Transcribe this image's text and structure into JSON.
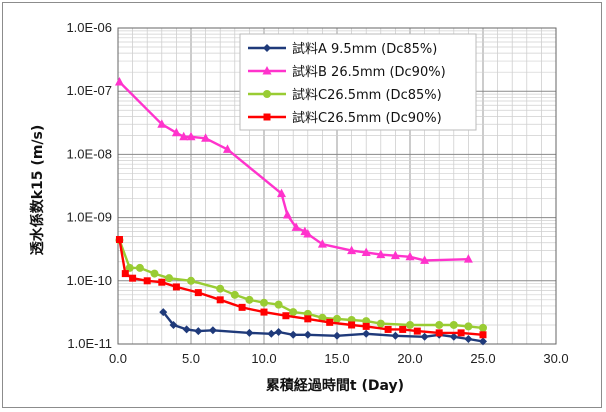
{
  "chart_data": {
    "type": "line",
    "xlabel": "累積経過時間t (Day)",
    "ylabel": "透水係数k15 (m/s)",
    "xlim": [
      0,
      30
    ],
    "ylim": [
      1e-11,
      1e-06
    ],
    "y_scale": "log",
    "grid": true,
    "legend_position": "top-right",
    "x_ticks": [
      "0.0",
      "5.0",
      "10.0",
      "15.0",
      "20.0",
      "25.0",
      "30.0"
    ],
    "y_ticks": [
      "1.0E-11",
      "1.0E-10",
      "1.0E-09",
      "1.0E-08",
      "1.0E-07",
      "1.0E-06"
    ],
    "series": [
      {
        "name": "試料A 9.5mm (Dc85%)",
        "color": "#1f3a7a",
        "marker": "diamond",
        "points": [
          [
            3.1,
            3.2e-11
          ],
          [
            3.8,
            2e-11
          ],
          [
            4.7,
            1.7e-11
          ],
          [
            5.5,
            1.6e-11
          ],
          [
            6.5,
            1.65e-11
          ],
          [
            9.0,
            1.5e-11
          ],
          [
            10.5,
            1.45e-11
          ],
          [
            11.0,
            1.55e-11
          ],
          [
            12.0,
            1.4e-11
          ],
          [
            13.0,
            1.4e-11
          ],
          [
            15.0,
            1.35e-11
          ],
          [
            17.0,
            1.45e-11
          ],
          [
            19.0,
            1.35e-11
          ],
          [
            21.0,
            1.3e-11
          ],
          [
            22.0,
            1.4e-11
          ],
          [
            23.0,
            1.3e-11
          ],
          [
            24.0,
            1.2e-11
          ],
          [
            25.0,
            1.1e-11
          ]
        ]
      },
      {
        "name": "試料B 26.5mm (Dc90%)",
        "color": "#ff33cc",
        "marker": "triangle",
        "points": [
          [
            0.1,
            1.4e-07
          ],
          [
            3.0,
            3e-08
          ],
          [
            4.0,
            2.2e-08
          ],
          [
            4.5,
            1.9e-08
          ],
          [
            5.0,
            1.9e-08
          ],
          [
            6.0,
            1.8e-08
          ],
          [
            7.5,
            1.2e-08
          ],
          [
            11.2,
            2.4e-09
          ],
          [
            11.6,
            1.1e-09
          ],
          [
            12.2,
            7e-10
          ],
          [
            12.8,
            6e-10
          ],
          [
            13.0,
            5.5e-10
          ],
          [
            14.0,
            3.8e-10
          ],
          [
            16.0,
            3e-10
          ],
          [
            17.0,
            2.8e-10
          ],
          [
            18.0,
            2.6e-10
          ],
          [
            19.0,
            2.5e-10
          ],
          [
            20.0,
            2.4e-10
          ],
          [
            21.0,
            2.1e-10
          ],
          [
            24.0,
            2.2e-10
          ]
        ]
      },
      {
        "name": "試料C26.5mm (Dc85%)",
        "color": "#99cc33",
        "marker": "circle",
        "points": [
          [
            0.1,
            4.4e-10
          ],
          [
            0.8,
            1.6e-10
          ],
          [
            1.5,
            1.6e-10
          ],
          [
            2.5,
            1.3e-10
          ],
          [
            3.5,
            1.1e-10
          ],
          [
            5.0,
            1e-10
          ],
          [
            7.0,
            7.5e-11
          ],
          [
            8.0,
            6e-11
          ],
          [
            9.0,
            5e-11
          ],
          [
            10.0,
            4.5e-11
          ],
          [
            11.0,
            4.2e-11
          ],
          [
            12.0,
            3.2e-11
          ],
          [
            13.0,
            3e-11
          ],
          [
            14.0,
            2.6e-11
          ],
          [
            15.0,
            2.5e-11
          ],
          [
            16.0,
            2.4e-11
          ],
          [
            17.0,
            2.3e-11
          ],
          [
            18.0,
            2.1e-11
          ],
          [
            20.0,
            2e-11
          ],
          [
            22.0,
            2e-11
          ],
          [
            23.0,
            2e-11
          ],
          [
            24.0,
            1.9e-11
          ],
          [
            25.0,
            1.8e-11
          ]
        ]
      },
      {
        "name": "試料C26.5mm (Dc90%)",
        "color": "#ff0000",
        "marker": "square",
        "points": [
          [
            0.1,
            4.5e-10
          ],
          [
            0.5,
            1.3e-10
          ],
          [
            1.0,
            1.1e-10
          ],
          [
            2.0,
            1e-10
          ],
          [
            3.0,
            9.5e-11
          ],
          [
            4.0,
            8e-11
          ],
          [
            5.5,
            6.5e-11
          ],
          [
            7.0,
            5e-11
          ],
          [
            8.5,
            3.8e-11
          ],
          [
            10.0,
            3.2e-11
          ],
          [
            11.5,
            2.8e-11
          ],
          [
            13.0,
            2.5e-11
          ],
          [
            14.5,
            2.2e-11
          ],
          [
            16.0,
            2e-11
          ],
          [
            17.0,
            1.9e-11
          ],
          [
            18.5,
            1.7e-11
          ],
          [
            19.5,
            1.7e-11
          ],
          [
            20.5,
            1.6e-11
          ],
          [
            22.0,
            1.5e-11
          ],
          [
            23.5,
            1.5e-11
          ],
          [
            25.0,
            1.4e-11
          ]
        ]
      }
    ]
  }
}
